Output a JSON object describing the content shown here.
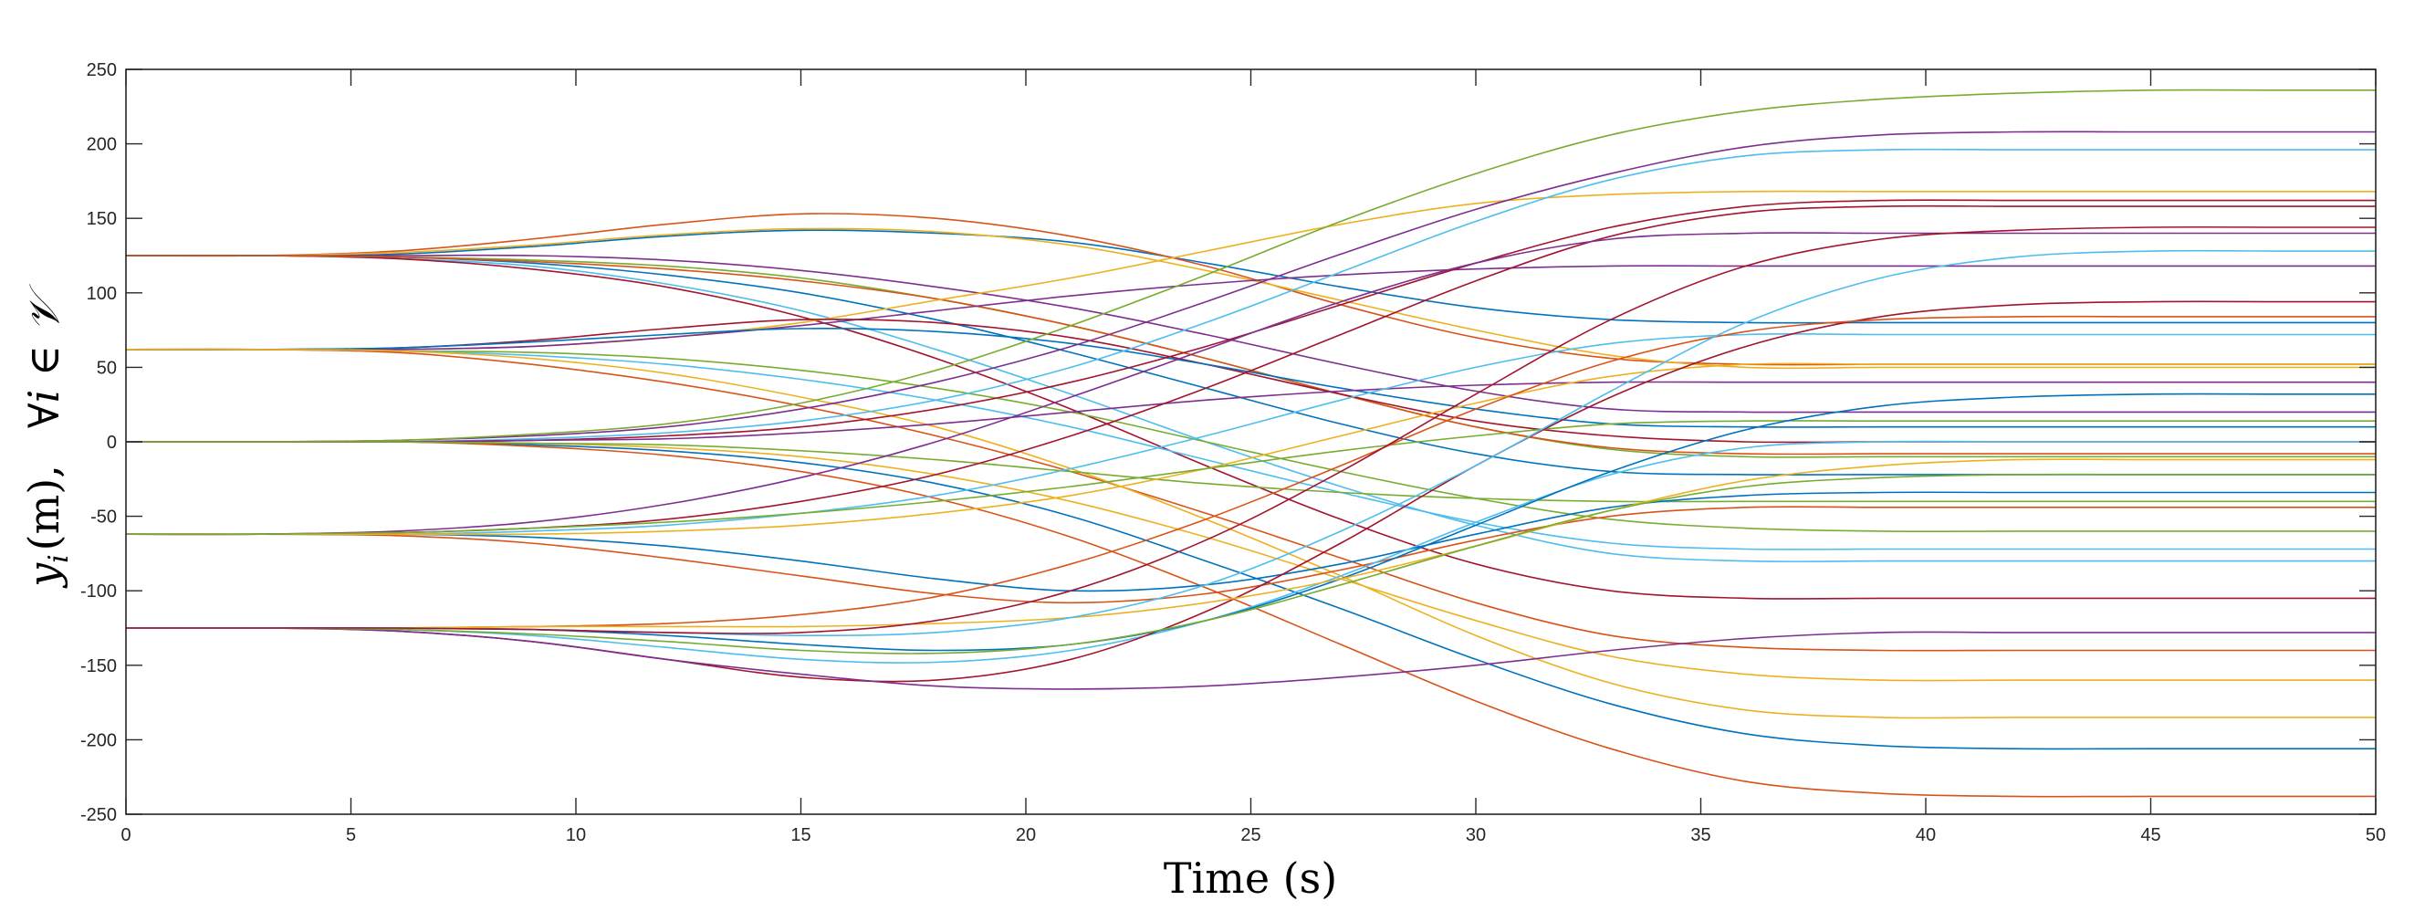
{
  "chart_data": {
    "type": "line",
    "title": "",
    "xlabel": "Time (s)",
    "ylabel": {
      "var": "y",
      "sub": "i",
      "unit": "(m),",
      "quant": "∀i ∈ 𝒱"
    },
    "xlim": [
      0,
      50
    ],
    "ylim": [
      -250,
      250
    ],
    "xticks": [
      0,
      5,
      10,
      15,
      20,
      25,
      30,
      35,
      40,
      45,
      50
    ],
    "yticks": [
      250,
      200,
      150,
      100,
      50,
      0,
      -50,
      -100,
      -150,
      -200,
      -250
    ],
    "grid": false,
    "legend": "none",
    "palette": [
      "#0072BD",
      "#D95319",
      "#EDB120",
      "#7E2F8E",
      "#77AC30",
      "#4DBEEE",
      "#A2142F"
    ],
    "series_points_x": [
      0,
      3,
      6,
      9,
      12,
      15,
      18,
      21,
      24,
      27,
      30,
      33,
      36,
      39,
      42,
      45,
      48,
      50
    ],
    "series": [
      {
        "values": [
          125,
          125,
          126,
          131,
          138,
          142,
          140,
          134,
          120,
          104,
          90,
          82,
          80,
          80,
          80,
          80,
          80,
          80
        ]
      },
      {
        "values": [
          125,
          125,
          128,
          136,
          146,
          153,
          150,
          138,
          118,
          92,
          70,
          56,
          52,
          52,
          52,
          52,
          52,
          52
        ]
      },
      {
        "values": [
          125,
          125,
          127,
          132,
          139,
          143,
          141,
          132,
          115,
          95,
          75,
          58,
          50,
          50,
          50,
          50,
          50,
          50
        ]
      },
      {
        "values": [
          125,
          125,
          125,
          125,
          122,
          115,
          104,
          90,
          72,
          52,
          34,
          22,
          20,
          20,
          20,
          20,
          20,
          20
        ]
      },
      {
        "values": [
          125,
          125,
          124,
          122,
          118,
          110,
          96,
          78,
          56,
          32,
          10,
          -5,
          -10,
          -10,
          -10,
          -10,
          -10,
          -10
        ]
      },
      {
        "values": [
          125,
          125,
          123,
          118,
          106,
          88,
          62,
          32,
          0,
          -30,
          -56,
          -75,
          -80,
          -80,
          -80,
          -80,
          -80,
          -80
        ]
      },
      {
        "values": [
          125,
          125,
          123,
          116,
          104,
          84,
          56,
          22,
          -16,
          -52,
          -82,
          -100,
          -105,
          -105,
          -105,
          -105,
          -105,
          -105
        ]
      },
      {
        "values": [
          125,
          125,
          124,
          120,
          112,
          100,
          82,
          60,
          36,
          12,
          -8,
          -20,
          -22,
          -22,
          -22,
          -22,
          -22,
          -22
        ]
      },
      {
        "values": [
          125,
          125,
          124,
          121,
          116,
          108,
          96,
          78,
          56,
          32,
          10,
          -4,
          -8,
          -8,
          -8,
          -8,
          -8,
          -8
        ]
      },
      {
        "values": [
          62,
          62,
          62,
          64,
          70,
          80,
          95,
          110,
          128,
          146,
          160,
          166,
          168,
          168,
          168,
          168,
          168,
          168
        ]
      },
      {
        "values": [
          62,
          62,
          62,
          64,
          70,
          78,
          88,
          98,
          106,
          112,
          116,
          118,
          118,
          118,
          118,
          118,
          118,
          118
        ]
      },
      {
        "values": [
          62,
          62,
          61,
          60,
          56,
          48,
          36,
          20,
          0,
          -20,
          -38,
          -52,
          -58,
          -60,
          -60,
          -60,
          -60,
          -60
        ]
      },
      {
        "values": [
          62,
          62,
          61,
          58,
          52,
          42,
          28,
          10,
          -12,
          -34,
          -54,
          -68,
          -72,
          -72,
          -72,
          -72,
          -72,
          -72
        ]
      },
      {
        "values": [
          62,
          62,
          63,
          68,
          76,
          82,
          80,
          70,
          52,
          32,
          14,
          4,
          0,
          0,
          0,
          0,
          0,
          0
        ]
      },
      {
        "values": [
          62,
          62,
          63,
          67,
          72,
          76,
          74,
          66,
          52,
          36,
          22,
          12,
          10,
          10,
          10,
          10,
          10,
          10
        ]
      },
      {
        "values": [
          62,
          62,
          60,
          52,
          40,
          24,
          4,
          -20,
          -48,
          -78,
          -108,
          -130,
          -138,
          -140,
          -140,
          -140,
          -140,
          -140
        ]
      },
      {
        "values": [
          62,
          62,
          61,
          56,
          46,
          30,
          10,
          -18,
          -52,
          -90,
          -130,
          -162,
          -180,
          -185,
          -185,
          -185,
          -185,
          -185
        ]
      },
      {
        "values": [
          0,
          0,
          1,
          4,
          10,
          22,
          40,
          64,
          94,
          126,
          156,
          180,
          198,
          206,
          208,
          208,
          208,
          208
        ]
      },
      {
        "values": [
          0,
          0,
          1,
          5,
          12,
          26,
          48,
          78,
          112,
          148,
          180,
          206,
          222,
          230,
          234,
          236,
          236,
          236
        ]
      },
      {
        "values": [
          0,
          0,
          0,
          2,
          6,
          14,
          28,
          50,
          80,
          114,
          148,
          176,
          192,
          196,
          196,
          196,
          196,
          196
        ]
      },
      {
        "values": [
          0,
          0,
          0,
          1,
          4,
          10,
          22,
          40,
          64,
          92,
          120,
          144,
          158,
          162,
          162,
          162,
          162,
          162
        ]
      },
      {
        "values": [
          0,
          0,
          0,
          -2,
          -6,
          -14,
          -28,
          -50,
          -80,
          -112,
          -146,
          -176,
          -196,
          -204,
          -206,
          -206,
          -206,
          -206
        ]
      },
      {
        "values": [
          0,
          0,
          0,
          -3,
          -9,
          -20,
          -38,
          -64,
          -98,
          -136,
          -174,
          -206,
          -228,
          -236,
          -238,
          -238,
          -238,
          -238
        ]
      },
      {
        "values": [
          0,
          0,
          0,
          -1,
          -4,
          -10,
          -22,
          -40,
          -64,
          -92,
          -120,
          -144,
          -156,
          -160,
          -160,
          -160,
          -160,
          -160
        ]
      },
      {
        "values": [
          0,
          0,
          0,
          1,
          2,
          6,
          12,
          20,
          28,
          34,
          38,
          40,
          40,
          40,
          40,
          40,
          40,
          40
        ]
      },
      {
        "values": [
          0,
          0,
          0,
          -1,
          -2,
          -6,
          -12,
          -20,
          -28,
          -34,
          -38,
          -40,
          -40,
          -40,
          -40,
          -40,
          -40,
          -40
        ]
      },
      {
        "values": [
          -62,
          -62,
          -62,
          -60,
          -56,
          -48,
          -36,
          -18,
          4,
          28,
          50,
          66,
          72,
          72,
          72,
          72,
          72,
          72
        ]
      },
      {
        "values": [
          -62,
          -62,
          -61,
          -58,
          -52,
          -40,
          -22,
          4,
          36,
          72,
          108,
          138,
          154,
          158,
          158,
          158,
          158,
          158
        ]
      },
      {
        "values": [
          -62,
          -62,
          -62,
          -64,
          -70,
          -80,
          -92,
          -100,
          -96,
          -82,
          -62,
          -44,
          -36,
          -34,
          -34,
          -34,
          -34,
          -34
        ]
      },
      {
        "values": [
          -62,
          -62,
          -63,
          -68,
          -78,
          -90,
          -102,
          -108,
          -102,
          -86,
          -66,
          -50,
          -44,
          -44,
          -44,
          -44,
          -44,
          -44
        ]
      },
      {
        "values": [
          -62,
          -62,
          -62,
          -62,
          -60,
          -56,
          -48,
          -36,
          -18,
          4,
          26,
          44,
          52,
          52,
          52,
          52,
          52,
          52
        ]
      },
      {
        "values": [
          -62,
          -62,
          -60,
          -54,
          -42,
          -24,
          0,
          30,
          62,
          94,
          120,
          136,
          140,
          140,
          140,
          140,
          140,
          140
        ]
      },
      {
        "values": [
          -62,
          -62,
          -61,
          -58,
          -54,
          -48,
          -40,
          -30,
          -18,
          -6,
          4,
          12,
          14,
          14,
          14,
          14,
          14,
          14
        ]
      },
      {
        "values": [
          -125,
          -125,
          -126,
          -130,
          -138,
          -146,
          -148,
          -140,
          -120,
          -90,
          -54,
          -22,
          -4,
          0,
          0,
          0,
          0,
          0
        ]
      },
      {
        "values": [
          -125,
          -125,
          -127,
          -134,
          -146,
          -158,
          -160,
          -146,
          -114,
          -68,
          -16,
          30,
          64,
          84,
          92,
          94,
          94,
          94
        ]
      },
      {
        "values": [
          -125,
          -125,
          -125,
          -126,
          -130,
          -136,
          -140,
          -136,
          -120,
          -92,
          -56,
          -20,
          8,
          24,
          30,
          32,
          32,
          32
        ]
      },
      {
        "values": [
          -125,
          -125,
          -125,
          -124,
          -122,
          -116,
          -104,
          -82,
          -52,
          -16,
          22,
          54,
          74,
          82,
          84,
          84,
          84,
          84
        ]
      },
      {
        "values": [
          -125,
          -125,
          -125,
          -124,
          -124,
          -124,
          -122,
          -118,
          -108,
          -92,
          -70,
          -46,
          -26,
          -16,
          -12,
          -12,
          -12,
          -12
        ]
      },
      {
        "values": [
          -125,
          -125,
          -127,
          -134,
          -146,
          -156,
          -164,
          -166,
          -164,
          -158,
          -150,
          -140,
          -132,
          -128,
          -128,
          -128,
          -128,
          -128
        ]
      },
      {
        "values": [
          -125,
          -125,
          -126,
          -129,
          -134,
          -140,
          -142,
          -136,
          -120,
          -96,
          -70,
          -46,
          -30,
          -24,
          -22,
          -22,
          -22,
          -22
        ]
      },
      {
        "values": [
          -125,
          -125,
          -125,
          -126,
          -128,
          -130,
          -128,
          -118,
          -96,
          -60,
          -16,
          34,
          80,
          110,
          124,
          128,
          128,
          128
        ]
      },
      {
        "values": [
          -125,
          -125,
          -125,
          -126,
          -128,
          -128,
          -120,
          -100,
          -66,
          -20,
          32,
          82,
          118,
          136,
          142,
          144,
          144,
          144
        ]
      }
    ]
  }
}
